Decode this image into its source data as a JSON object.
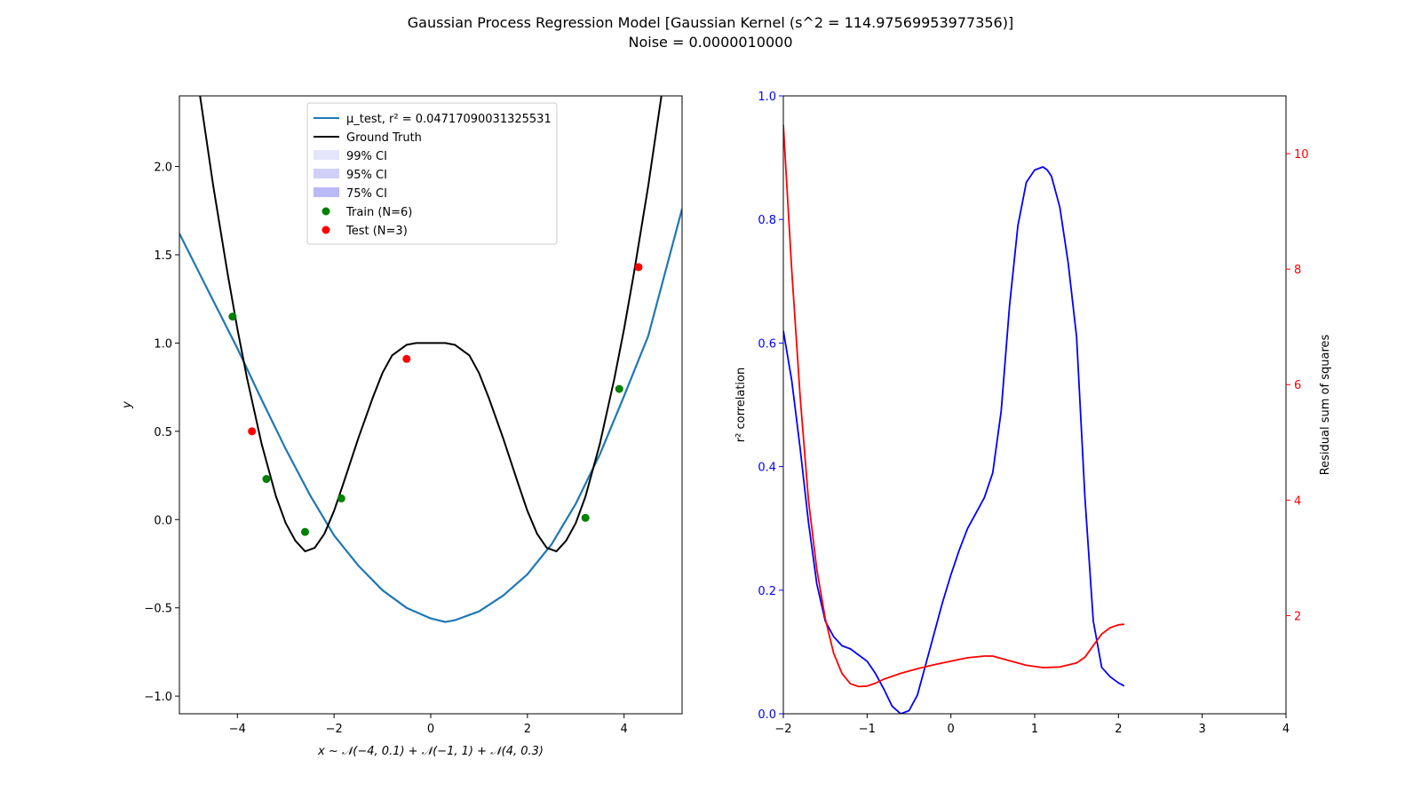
{
  "figure": {
    "title_line1": "Gaussian Process Regression Model [Gaussian Kernel (s^2 = 114.97569953977356)]",
    "title_line2": "Noise = 0.0000010000"
  },
  "chart_data": [
    {
      "type": "line",
      "xlabel": "x ~ 𝒩(−4, 0.1) + 𝒩(−1, 1) + 𝒩(4, 0.3)",
      "ylabel": "y",
      "xlim": [
        -5.2,
        5.2
      ],
      "ylim": [
        -1.1,
        2.4
      ],
      "xticks": [
        -4,
        -2,
        0,
        2,
        4
      ],
      "xtick_labels": [
        "−4",
        "−2",
        "0",
        "2",
        "4"
      ],
      "yticks": [
        -1.0,
        -0.5,
        0.0,
        0.5,
        1.0,
        1.5,
        2.0
      ],
      "ytick_labels": [
        "−1.0",
        "−0.5",
        "0.0",
        "0.5",
        "1.0",
        "1.5",
        "2.0"
      ],
      "grid": false,
      "legend_position": "upper-center",
      "legend": [
        {
          "label": "μ_test, r² = 0.04717090031325531",
          "kind": "line",
          "color": "#1f77b4"
        },
        {
          "label": "Ground Truth",
          "kind": "line",
          "color": "#000000"
        },
        {
          "label": "99% CI",
          "kind": "patch",
          "color": "#e4e4fb"
        },
        {
          "label": "95% CI",
          "kind": "patch",
          "color": "#cfcff8"
        },
        {
          "label": "75% CI",
          "kind": "patch",
          "color": "#b9b9f6"
        },
        {
          "label": "Train (N=6)",
          "kind": "point",
          "color": "#008000"
        },
        {
          "label": "Test (N=3)",
          "kind": "point",
          "color": "#ff0000"
        }
      ],
      "series": [
        {
          "name": "μ_test",
          "color": "#1f77b4",
          "x": [
            -5.2,
            -4.5,
            -4,
            -3.5,
            -3,
            -2.5,
            -2,
            -1.5,
            -1,
            -0.5,
            0,
            0.3,
            0.5,
            1,
            1.5,
            2,
            2.5,
            3,
            3.5,
            4,
            4.5,
            5.2
          ],
          "y": [
            1.62,
            1.24,
            0.97,
            0.68,
            0.4,
            0.14,
            -0.09,
            -0.26,
            -0.4,
            -0.5,
            -0.56,
            -0.58,
            -0.57,
            -0.52,
            -0.43,
            -0.31,
            -0.14,
            0.09,
            0.37,
            0.7,
            1.04,
            1.76
          ]
        },
        {
          "name": "Ground Truth",
          "color": "#000000",
          "x": [
            -4.8,
            -4.5,
            -4.2,
            -4,
            -3.8,
            -3.5,
            -3.2,
            -3,
            -2.8,
            -2.6,
            -2.4,
            -2.2,
            -2,
            -1.8,
            -1.5,
            -1.2,
            -1,
            -0.8,
            -0.5,
            -0.3,
            0,
            0.3,
            0.5,
            0.8,
            1,
            1.2,
            1.5,
            1.8,
            2,
            2.2,
            2.4,
            2.6,
            2.8,
            3,
            3.2,
            3.5,
            3.8,
            4,
            4.2,
            4.5,
            4.8
          ],
          "y": [
            2.45,
            1.89,
            1.39,
            1.08,
            0.8,
            0.43,
            0.13,
            -0.02,
            -0.12,
            -0.18,
            -0.16,
            -0.08,
            0.05,
            0.21,
            0.46,
            0.69,
            0.83,
            0.93,
            0.99,
            1.0,
            1.0,
            1.0,
            0.99,
            0.93,
            0.83,
            0.69,
            0.46,
            0.21,
            0.05,
            -0.08,
            -0.16,
            -0.18,
            -0.12,
            -0.02,
            0.13,
            0.43,
            0.8,
            1.08,
            1.39,
            1.89,
            2.45
          ]
        }
      ],
      "train_points": {
        "x": [
          -4.1,
          -3.4,
          -2.6,
          -1.85,
          3.2,
          3.9
        ],
        "y": [
          1.15,
          0.23,
          -0.07,
          0.12,
          0.01,
          0.74
        ]
      },
      "test_points": {
        "x": [
          -3.7,
          -0.5,
          4.3
        ],
        "y": [
          0.5,
          0.91,
          1.43
        ]
      }
    },
    {
      "type": "line",
      "xlabel": "",
      "ylabel": "r² correlation",
      "ylabel_right": "Residual sum of squares",
      "xlim": [
        -2,
        4
      ],
      "ylim": [
        0.0,
        1.0
      ],
      "ylim_right": [
        0.3,
        11.0
      ],
      "xticks": [
        -2,
        -1,
        0,
        1,
        2,
        3,
        4
      ],
      "xtick_labels": [
        "−2",
        "−1",
        "0",
        "1",
        "2",
        "3",
        "4"
      ],
      "yticks": [
        0.0,
        0.2,
        0.4,
        0.6,
        0.8,
        1.0
      ],
      "ytick_labels": [
        "0.0",
        "0.2",
        "0.4",
        "0.6",
        "0.8",
        "1.0"
      ],
      "yticks_right": [
        2,
        4,
        6,
        8,
        10
      ],
      "ytick_labels_right": [
        "2",
        "4",
        "6",
        "8",
        "10"
      ],
      "left_axis_color": "#0000ff",
      "right_axis_color": "#ff0000",
      "grid": false,
      "series": [
        {
          "name": "r² correlation",
          "axis": "left",
          "color": "#0000ff",
          "x": [
            -2,
            -1.9,
            -1.8,
            -1.7,
            -1.6,
            -1.5,
            -1.4,
            -1.3,
            -1.2,
            -1.1,
            -1,
            -0.9,
            -0.8,
            -0.7,
            -0.6,
            -0.5,
            -0.4,
            -0.3,
            -0.2,
            -0.1,
            0,
            0.1,
            0.2,
            0.3,
            0.4,
            0.5,
            0.6,
            0.7,
            0.8,
            0.9,
            1,
            1.1,
            1.15,
            1.2,
            1.3,
            1.4,
            1.5,
            1.6,
            1.7,
            1.8,
            1.9,
            2,
            2.07
          ],
          "y": [
            0.62,
            0.54,
            0.43,
            0.31,
            0.21,
            0.15,
            0.125,
            0.11,
            0.105,
            0.095,
            0.085,
            0.065,
            0.04,
            0.012,
            0.0,
            0.005,
            0.03,
            0.08,
            0.13,
            0.18,
            0.225,
            0.265,
            0.3,
            0.325,
            0.35,
            0.39,
            0.49,
            0.66,
            0.79,
            0.86,
            0.88,
            0.885,
            0.88,
            0.87,
            0.82,
            0.73,
            0.61,
            0.35,
            0.15,
            0.075,
            0.06,
            0.05,
            0.045
          ]
        },
        {
          "name": "Residual sum of squares",
          "axis": "right",
          "color": "#ff0000",
          "x": [
            -2,
            -1.9,
            -1.8,
            -1.7,
            -1.6,
            -1.5,
            -1.4,
            -1.3,
            -1.2,
            -1.1,
            -1,
            -0.9,
            -0.8,
            -0.6,
            -0.4,
            -0.2,
            0,
            0.2,
            0.4,
            0.5,
            0.7,
            0.9,
            1.1,
            1.3,
            1.5,
            1.6,
            1.7,
            1.8,
            1.9,
            2.0,
            2.07
          ],
          "y": [
            10.5,
            8.0,
            5.8,
            4.0,
            2.8,
            1.95,
            1.35,
            1.0,
            0.82,
            0.77,
            0.78,
            0.83,
            0.9,
            1.0,
            1.08,
            1.15,
            1.21,
            1.27,
            1.3,
            1.3,
            1.22,
            1.14,
            1.1,
            1.11,
            1.18,
            1.28,
            1.48,
            1.68,
            1.79,
            1.84,
            1.85
          ]
        }
      ]
    }
  ]
}
